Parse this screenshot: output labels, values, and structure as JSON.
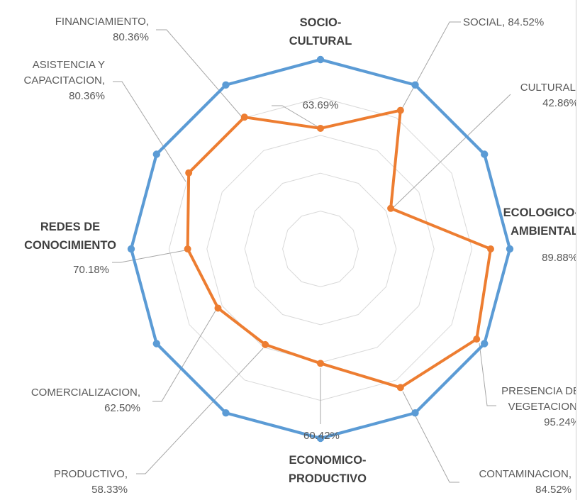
{
  "chart_data": {
    "type": "radar",
    "axes": [
      {
        "label": [
          "63.69%"
        ],
        "value": 63.69
      },
      {
        "label": [
          "SOCIAL, 84.52%"
        ],
        "value": 84.52
      },
      {
        "label": [
          "CULTURAL,",
          "42.86%"
        ],
        "value": 42.86
      },
      {
        "label": [
          "89.88%"
        ],
        "value": 89.88
      },
      {
        "label": [
          "PRESENCIA DE",
          "VEGETACION,",
          "95.24%"
        ],
        "value": 95.24
      },
      {
        "label": [
          "CONTAMINACION,",
          "84.52%"
        ],
        "value": 84.52
      },
      {
        "label": [
          "60.42%"
        ],
        "value": 60.42
      },
      {
        "label": [
          "PRODUCTIVO,",
          "58.33%"
        ],
        "value": 58.33
      },
      {
        "label": [
          "COMERCIALIZACION,",
          "62.50%"
        ],
        "value": 62.5
      },
      {
        "label": [
          "70.18%"
        ],
        "value": 70.18
      },
      {
        "label": [
          "ASISTENCIA Y",
          "CAPACITACION,",
          "80.36%"
        ],
        "value": 80.36
      },
      {
        "label": [
          "FINANCIAMIENTO,",
          "80.36%"
        ],
        "value": 80.36
      }
    ],
    "dimensions": [
      {
        "label": [
          "SOCIO-",
          "CULTURAL"
        ]
      },
      {
        "label": [
          "ECOLOGICO-",
          "AMBIENTAL"
        ]
      },
      {
        "label": [
          "ECONOMICO-",
          "PRODUCTIVO"
        ]
      },
      {
        "label": [
          "REDES DE",
          "CONOCIMIENTO"
        ]
      }
    ],
    "series": [
      {
        "values": [
          100,
          100,
          100,
          100,
          100,
          100,
          100,
          100,
          100,
          100,
          100,
          100
        ],
        "color": "#5b9bd5"
      },
      {
        "values": [
          63.69,
          84.52,
          42.86,
          89.88,
          95.24,
          84.52,
          60.42,
          58.33,
          62.5,
          70.18,
          80.36,
          80.36
        ],
        "color": "#ed7d31"
      }
    ],
    "range": [
      0,
      100
    ],
    "grid": true,
    "legend": false
  }
}
